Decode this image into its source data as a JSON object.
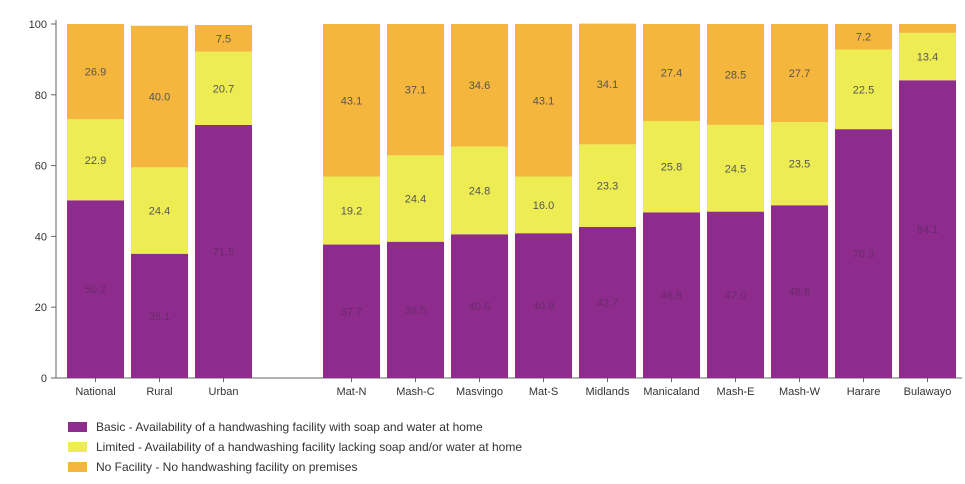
{
  "chart_data": {
    "type": "bar",
    "stacked": true,
    "categories": [
      "National",
      "Rural",
      "Urban",
      "Mat-N",
      "Mash-C",
      "Masvingo",
      "Mat-S",
      "Midlands",
      "Manicaland",
      "Mash-E",
      "Mash-W",
      "Harare",
      "Bulawayo"
    ],
    "series": [
      {
        "name": "Basic - Availability of a handwashing facility with soap and water at home",
        "color": "#8e2c8e",
        "values": [
          50.2,
          35.1,
          71.5,
          37.7,
          38.5,
          40.6,
          40.9,
          42.7,
          46.8,
          47.0,
          48.8,
          70.3,
          84.1
        ],
        "labels": [
          "50.2",
          "35.1",
          "71.5",
          "37.7",
          "38.5",
          "40.6",
          "40.9",
          "42.7",
          "46.8",
          "47.0",
          "48.8",
          "70.3",
          "84.1"
        ]
      },
      {
        "name": "Limited - Availability of a handwashing facility lacking soap and/or water at home",
        "color": "#eeec53",
        "values": [
          22.9,
          24.4,
          20.7,
          19.2,
          24.4,
          24.8,
          16.0,
          23.3,
          25.8,
          24.5,
          23.5,
          22.5,
          13.4
        ],
        "labels": [
          "22.9",
          "24.4",
          "20.7",
          "19.2",
          "24.4",
          "24.8",
          "16.0",
          "23.3",
          "25.8",
          "24.5",
          "23.5",
          "22.5",
          "13.4"
        ]
      },
      {
        "name": "No Facility - No handwashing facility on premises",
        "color": "#f4b63c",
        "values": [
          26.9,
          40.0,
          7.5,
          43.1,
          37.1,
          34.6,
          43.1,
          34.1,
          27.4,
          28.5,
          27.7,
          7.2,
          2.5
        ],
        "labels": [
          "26.9",
          "40.0",
          "7.5",
          "43.1",
          "37.1",
          "34.6",
          "43.1",
          "34.1",
          "27.4",
          "28.5",
          "27.7",
          "7.2",
          ""
        ]
      }
    ],
    "ylim": [
      0,
      100
    ],
    "yticks": [
      "0",
      "20",
      "40",
      "60",
      "80",
      "100"
    ],
    "xlabel": "",
    "ylabel": "",
    "title": "",
    "grid": false,
    "legend_position": "bottom-left"
  }
}
